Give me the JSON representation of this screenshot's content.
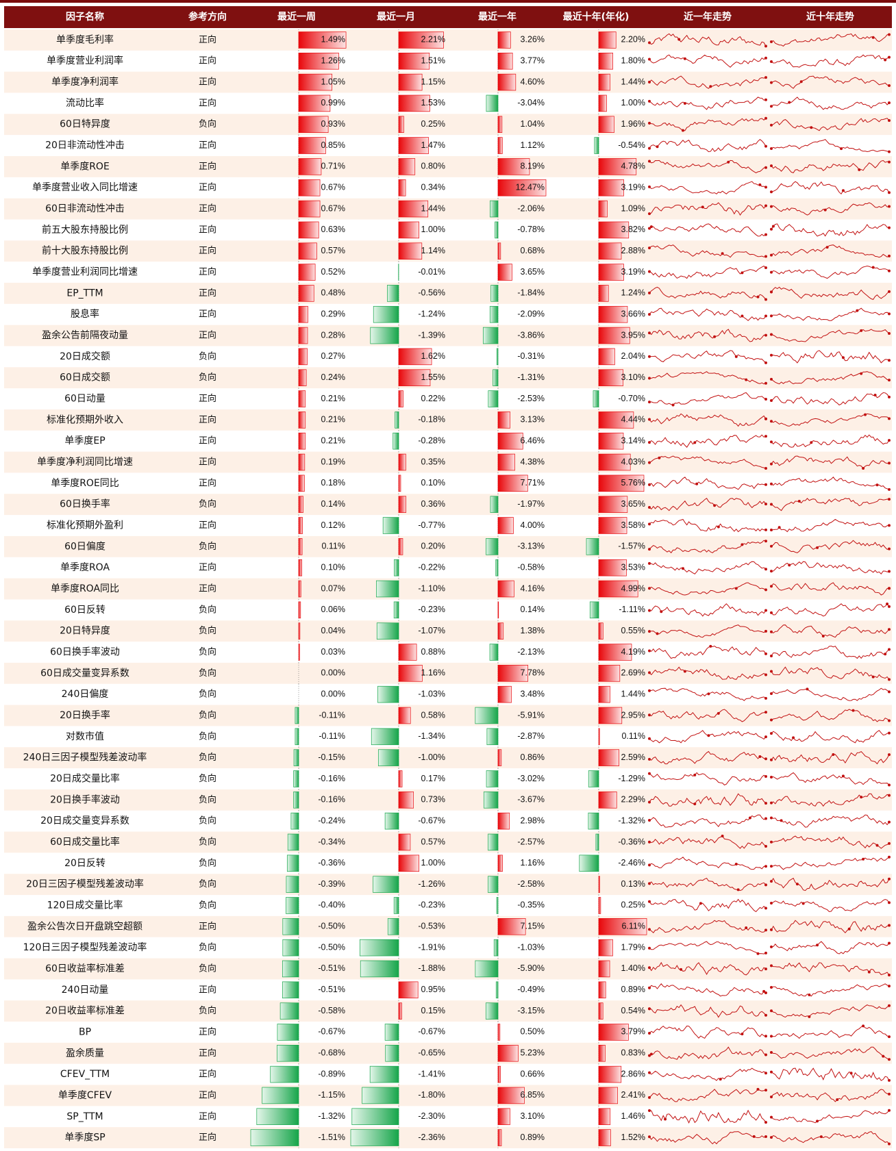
{
  "columns": [
    "因子名称",
    "参考方向",
    "最近一周",
    "最近一月",
    "最近一年",
    "最近十年(年化)",
    "近一年走势",
    "近十年走势"
  ],
  "rows": [
    {
      "name": "单季度毛利率",
      "direction": "正向",
      "values": [
        1.49,
        2.21,
        3.26,
        2.2
      ],
      "value_labels": [
        "1.49%",
        "2.21%",
        "3.26%",
        "2.20%"
      ]
    },
    {
      "name": "单季度营业利润率",
      "direction": "正向",
      "values": [
        1.26,
        1.51,
        3.77,
        1.8
      ],
      "value_labels": [
        "1.26%",
        "1.51%",
        "3.77%",
        "1.80%"
      ]
    },
    {
      "name": "单季度净利润率",
      "direction": "正向",
      "values": [
        1.05,
        1.15,
        4.6,
        1.44
      ],
      "value_labels": [
        "1.05%",
        "1.15%",
        "4.60%",
        "1.44%"
      ]
    },
    {
      "name": "流动比率",
      "direction": "正向",
      "values": [
        0.99,
        1.53,
        -3.04,
        1.0
      ],
      "value_labels": [
        "0.99%",
        "1.53%",
        "-3.04%",
        "1.00%"
      ]
    },
    {
      "name": "60日特异度",
      "direction": "负向",
      "values": [
        0.93,
        0.25,
        1.04,
        1.96
      ],
      "value_labels": [
        "0.93%",
        "0.25%",
        "1.04%",
        "1.96%"
      ]
    },
    {
      "name": "20日非流动性冲击",
      "direction": "正向",
      "values": [
        0.85,
        1.47,
        1.12,
        -0.54
      ],
      "value_labels": [
        "0.85%",
        "1.47%",
        "1.12%",
        "-0.54%"
      ]
    },
    {
      "name": "单季度ROE",
      "direction": "正向",
      "values": [
        0.71,
        0.8,
        8.19,
        4.78
      ],
      "value_labels": [
        "0.71%",
        "0.80%",
        "8.19%",
        "4.78%"
      ]
    },
    {
      "name": "单季度营业收入同比增速",
      "direction": "正向",
      "values": [
        0.67,
        0.34,
        12.47,
        3.19
      ],
      "value_labels": [
        "0.67%",
        "0.34%",
        "12.47%",
        "3.19%"
      ]
    },
    {
      "name": "60日非流动性冲击",
      "direction": "正向",
      "values": [
        0.67,
        1.44,
        -2.06,
        1.09
      ],
      "value_labels": [
        "0.67%",
        "1.44%",
        "-2.06%",
        "1.09%"
      ]
    },
    {
      "name": "前五大股东持股比例",
      "direction": "正向",
      "values": [
        0.63,
        1.0,
        -0.78,
        3.82
      ],
      "value_labels": [
        "0.63%",
        "1.00%",
        "-0.78%",
        "3.82%"
      ]
    },
    {
      "name": "前十大股东持股比例",
      "direction": "正向",
      "values": [
        0.57,
        1.14,
        0.68,
        2.88
      ],
      "value_labels": [
        "0.57%",
        "1.14%",
        "0.68%",
        "2.88%"
      ]
    },
    {
      "name": "单季度营业利润同比增速",
      "direction": "正向",
      "values": [
        0.52,
        -0.01,
        3.65,
        3.19
      ],
      "value_labels": [
        "0.52%",
        "-0.01%",
        "3.65%",
        "3.19%"
      ]
    },
    {
      "name": "EP_TTM",
      "direction": "正向",
      "values": [
        0.48,
        -0.56,
        -1.84,
        1.24
      ],
      "value_labels": [
        "0.48%",
        "-0.56%",
        "-1.84%",
        "1.24%"
      ]
    },
    {
      "name": "股息率",
      "direction": "正向",
      "values": [
        0.29,
        -1.24,
        -2.09,
        3.66
      ],
      "value_labels": [
        "0.29%",
        "-1.24%",
        "-2.09%",
        "3.66%"
      ]
    },
    {
      "name": "盈余公告前隔夜动量",
      "direction": "正向",
      "values": [
        0.28,
        -1.39,
        -3.86,
        3.95
      ],
      "value_labels": [
        "0.28%",
        "-1.39%",
        "-3.86%",
        "3.95%"
      ]
    },
    {
      "name": "20日成交额",
      "direction": "负向",
      "values": [
        0.27,
        1.62,
        -0.31,
        2.04
      ],
      "value_labels": [
        "0.27%",
        "1.62%",
        "-0.31%",
        "2.04%"
      ]
    },
    {
      "name": "60日成交额",
      "direction": "负向",
      "values": [
        0.24,
        1.55,
        -1.31,
        3.1
      ],
      "value_labels": [
        "0.24%",
        "1.55%",
        "-1.31%",
        "3.10%"
      ]
    },
    {
      "name": "60日动量",
      "direction": "正向",
      "values": [
        0.21,
        0.22,
        -2.53,
        -0.7
      ],
      "value_labels": [
        "0.21%",
        "0.22%",
        "-2.53%",
        "-0.70%"
      ]
    },
    {
      "name": "标准化预期外收入",
      "direction": "正向",
      "values": [
        0.21,
        -0.18,
        3.13,
        4.44
      ],
      "value_labels": [
        "0.21%",
        "-0.18%",
        "3.13%",
        "4.44%"
      ]
    },
    {
      "name": "单季度EP",
      "direction": "正向",
      "values": [
        0.21,
        -0.28,
        6.46,
        3.14
      ],
      "value_labels": [
        "0.21%",
        "-0.28%",
        "6.46%",
        "3.14%"
      ]
    },
    {
      "name": "单季度净利润同比增速",
      "direction": "正向",
      "values": [
        0.19,
        0.35,
        4.38,
        4.03
      ],
      "value_labels": [
        "0.19%",
        "0.35%",
        "4.38%",
        "4.03%"
      ]
    },
    {
      "name": "单季度ROE同比",
      "direction": "正向",
      "values": [
        0.18,
        0.1,
        7.71,
        5.76
      ],
      "value_labels": [
        "0.18%",
        "0.10%",
        "7.71%",
        "5.76%"
      ]
    },
    {
      "name": "60日换手率",
      "direction": "负向",
      "values": [
        0.14,
        0.36,
        -1.97,
        3.65
      ],
      "value_labels": [
        "0.14%",
        "0.36%",
        "-1.97%",
        "3.65%"
      ]
    },
    {
      "name": "标准化预期外盈利",
      "direction": "正向",
      "values": [
        0.12,
        -0.77,
        4.0,
        3.58
      ],
      "value_labels": [
        "0.12%",
        "-0.77%",
        "4.00%",
        "3.58%"
      ]
    },
    {
      "name": "60日偏度",
      "direction": "负向",
      "values": [
        0.11,
        0.2,
        -3.13,
        -1.57
      ],
      "value_labels": [
        "0.11%",
        "0.20%",
        "-3.13%",
        "-1.57%"
      ]
    },
    {
      "name": "单季度ROA",
      "direction": "正向",
      "values": [
        0.1,
        -0.22,
        -0.58,
        3.53
      ],
      "value_labels": [
        "0.10%",
        "-0.22%",
        "-0.58%",
        "3.53%"
      ]
    },
    {
      "name": "单季度ROA同比",
      "direction": "正向",
      "values": [
        0.07,
        -1.1,
        4.16,
        4.99
      ],
      "value_labels": [
        "0.07%",
        "-1.10%",
        "4.16%",
        "4.99%"
      ]
    },
    {
      "name": "60日反转",
      "direction": "负向",
      "values": [
        0.06,
        -0.23,
        0.14,
        -1.11
      ],
      "value_labels": [
        "0.06%",
        "-0.23%",
        "0.14%",
        "-1.11%"
      ]
    },
    {
      "name": "20日特异度",
      "direction": "负向",
      "values": [
        0.04,
        -1.07,
        1.38,
        0.55
      ],
      "value_labels": [
        "0.04%",
        "-1.07%",
        "1.38%",
        "0.55%"
      ]
    },
    {
      "name": "60日换手率波动",
      "direction": "负向",
      "values": [
        0.03,
        0.88,
        -2.13,
        4.19
      ],
      "value_labels": [
        "0.03%",
        "0.88%",
        "-2.13%",
        "4.19%"
      ]
    },
    {
      "name": "60日成交量变异系数",
      "direction": "负向",
      "values": [
        0.0,
        1.16,
        7.78,
        2.69
      ],
      "value_labels": [
        "0.00%",
        "1.16%",
        "7.78%",
        "2.69%"
      ]
    },
    {
      "name": "240日偏度",
      "direction": "负向",
      "values": [
        0.0,
        -1.03,
        3.48,
        1.44
      ],
      "value_labels": [
        "0.00%",
        "-1.03%",
        "3.48%",
        "1.44%"
      ]
    },
    {
      "name": "20日换手率",
      "direction": "负向",
      "values": [
        -0.11,
        0.58,
        -5.91,
        2.95
      ],
      "value_labels": [
        "-0.11%",
        "0.58%",
        "-5.91%",
        "2.95%"
      ]
    },
    {
      "name": "对数市值",
      "direction": "负向",
      "values": [
        -0.11,
        -1.34,
        -2.87,
        0.11
      ],
      "value_labels": [
        "-0.11%",
        "-1.34%",
        "-2.87%",
        "0.11%"
      ]
    },
    {
      "name": "240日三因子模型残差波动率",
      "direction": "负向",
      "values": [
        -0.15,
        -1.0,
        0.86,
        2.59
      ],
      "value_labels": [
        "-0.15%",
        "-1.00%",
        "0.86%",
        "2.59%"
      ]
    },
    {
      "name": "20日成交量比率",
      "direction": "负向",
      "values": [
        -0.16,
        0.17,
        -3.02,
        -1.29
      ],
      "value_labels": [
        "-0.16%",
        "0.17%",
        "-3.02%",
        "-1.29%"
      ]
    },
    {
      "name": "20日换手率波动",
      "direction": "负向",
      "values": [
        -0.16,
        0.73,
        -3.67,
        2.29
      ],
      "value_labels": [
        "-0.16%",
        "0.73%",
        "-3.67%",
        "2.29%"
      ]
    },
    {
      "name": "20日成交量变异系数",
      "direction": "负向",
      "values": [
        -0.24,
        -0.67,
        2.98,
        -1.32
      ],
      "value_labels": [
        "-0.24%",
        "-0.67%",
        "2.98%",
        "-1.32%"
      ]
    },
    {
      "name": "60日成交量比率",
      "direction": "负向",
      "values": [
        -0.34,
        0.57,
        -2.57,
        -0.36
      ],
      "value_labels": [
        "-0.34%",
        "0.57%",
        "-2.57%",
        "-0.36%"
      ]
    },
    {
      "name": "20日反转",
      "direction": "负向",
      "values": [
        -0.36,
        1.0,
        1.16,
        -2.46
      ],
      "value_labels": [
        "-0.36%",
        "1.00%",
        "1.16%",
        "-2.46%"
      ]
    },
    {
      "name": "20日三因子模型残差波动率",
      "direction": "负向",
      "values": [
        -0.39,
        -1.26,
        -2.58,
        0.13
      ],
      "value_labels": [
        "-0.39%",
        "-1.26%",
        "-2.58%",
        "0.13%"
      ]
    },
    {
      "name": "120日成交量比率",
      "direction": "负向",
      "values": [
        -0.4,
        -0.23,
        -0.35,
        0.25
      ],
      "value_labels": [
        "-0.40%",
        "-0.23%",
        "-0.35%",
        "0.25%"
      ]
    },
    {
      "name": "盈余公告次日开盘跳空超额",
      "direction": "正向",
      "values": [
        -0.5,
        -0.53,
        7.15,
        6.11
      ],
      "value_labels": [
        "-0.50%",
        "-0.53%",
        "7.15%",
        "6.11%"
      ]
    },
    {
      "name": "120日三因子模型残差波动率",
      "direction": "负向",
      "values": [
        -0.5,
        -1.91,
        -1.03,
        1.79
      ],
      "value_labels": [
        "-0.50%",
        "-1.91%",
        "-1.03%",
        "1.79%"
      ]
    },
    {
      "name": "60日收益率标准差",
      "direction": "负向",
      "values": [
        -0.51,
        -1.88,
        -5.9,
        1.4
      ],
      "value_labels": [
        "-0.51%",
        "-1.88%",
        "-5.90%",
        "1.40%"
      ]
    },
    {
      "name": "240日动量",
      "direction": "正向",
      "values": [
        -0.51,
        0.95,
        -0.49,
        0.89
      ],
      "value_labels": [
        "-0.51%",
        "0.95%",
        "-0.49%",
        "0.89%"
      ]
    },
    {
      "name": "20日收益率标准差",
      "direction": "负向",
      "values": [
        -0.58,
        0.15,
        -3.15,
        0.54
      ],
      "value_labels": [
        "-0.58%",
        "0.15%",
        "-3.15%",
        "0.54%"
      ]
    },
    {
      "name": "BP",
      "direction": "正向",
      "values": [
        -0.67,
        -0.67,
        0.5,
        3.79
      ],
      "value_labels": [
        "-0.67%",
        "-0.67%",
        "0.50%",
        "3.79%"
      ]
    },
    {
      "name": "盈余质量",
      "direction": "正向",
      "values": [
        -0.68,
        -0.65,
        5.23,
        0.83
      ],
      "value_labels": [
        "-0.68%",
        "-0.65%",
        "5.23%",
        "0.83%"
      ]
    },
    {
      "name": "CFEV_TTM",
      "direction": "正向",
      "values": [
        -0.89,
        -1.41,
        0.66,
        2.86
      ],
      "value_labels": [
        "-0.89%",
        "-1.41%",
        "0.66%",
        "2.86%"
      ]
    },
    {
      "name": "单季度CFEV",
      "direction": "正向",
      "values": [
        -1.15,
        -1.8,
        6.85,
        2.41
      ],
      "value_labels": [
        "-1.15%",
        "-1.80%",
        "6.85%",
        "2.41%"
      ]
    },
    {
      "name": "SP_TTM",
      "direction": "正向",
      "values": [
        -1.32,
        -2.3,
        3.1,
        1.46
      ],
      "value_labels": [
        "-1.32%",
        "-2.30%",
        "3.10%",
        "1.46%"
      ]
    },
    {
      "name": "单季度SP",
      "direction": "正向",
      "values": [
        -1.51,
        -2.36,
        0.89,
        1.52
      ],
      "value_labels": [
        "-1.51%",
        "-2.36%",
        "0.89%",
        "1.52%"
      ]
    }
  ]
}
